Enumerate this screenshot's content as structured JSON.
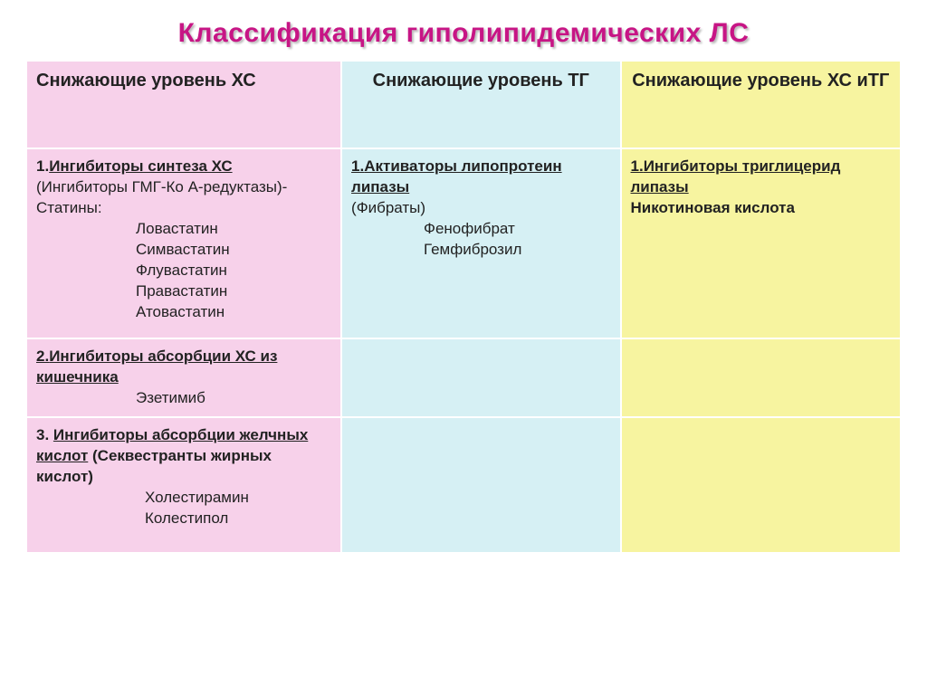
{
  "title": "Классификация гиполипидемических ЛС",
  "table": {
    "columns": [
      {
        "header": "Снижающие уровень ХС",
        "bg": "#f7d1ea",
        "align": "left"
      },
      {
        "header": "Снижающие уровень ТГ",
        "bg": "#d6f0f4",
        "align": "center"
      },
      {
        "header": "Снижающие уровень ХС иТГ",
        "bg": "#f7f4a0",
        "align": "center"
      }
    ],
    "cells": {
      "r1c1": {
        "heading_num": "1.",
        "heading": "Ингибиторы синтеза ХС",
        "sub": "(Ингибиторы ГМГ-Ко А-редуктазы)-",
        "sub2": "Статины:",
        "drugs": [
          "Ловастатин",
          "Симвастатин",
          "Флувастатин",
          "Правастатин",
          "Атовастатин"
        ]
      },
      "r1c2": {
        "heading_num": "1.",
        "heading_line1": "Активаторы липопротеин",
        "heading_line2": "липазы",
        "sub": "(Фибраты)",
        "drugs": [
          "Фенофибрат",
          "Гемфиброзил"
        ]
      },
      "r1c3": {
        "heading_num": "1.",
        "heading_line1": "Ингибиторы триглицерид",
        "heading_line2": "липазы",
        "sub": "Никотиновая кислота"
      },
      "r2c1": {
        "heading_num": "2.",
        "heading_line1": "Ингибиторы абсорбции ХС из ",
        "heading_line2": "кишечника",
        "drugs": [
          "Эзетимиб"
        ]
      },
      "r3c1": {
        "heading_num": "3. ",
        "heading_line1": "Ингибиторы абсорбции желчных",
        "heading_line2": "кислот",
        "sub": "  (Секвестранты жирных кислот)",
        "drugs": [
          "Холестирамин",
          "Колестипол"
        ]
      }
    }
  },
  "style": {
    "title_color": "#c71585",
    "col_colors": [
      "#f7d1ea",
      "#d6f0f4",
      "#f7f4a0"
    ],
    "border_color": "#ffffff",
    "title_fontsize": 30,
    "header_fontsize": 20,
    "body_fontsize": 17
  }
}
